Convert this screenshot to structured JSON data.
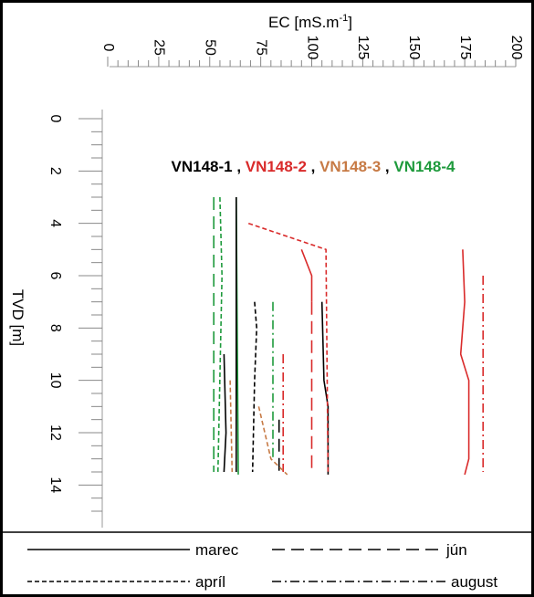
{
  "chart_data": {
    "type": "line",
    "x_axis": {
      "label_main": "EC [mS.m",
      "label_sup": "-1",
      "label_close": "]",
      "min": 0,
      "max": 200,
      "ticks": [
        "0",
        "25",
        "50",
        "75",
        "100",
        "125",
        "150",
        "175",
        "200"
      ]
    },
    "y_axis": {
      "label": "TVD [m]",
      "min": 0,
      "max": 15,
      "ticks": [
        "0",
        "2",
        "4",
        "6",
        "8",
        "10",
        "12",
        "14"
      ],
      "inverted": true
    },
    "wells": [
      {
        "label": "VN148-1",
        "color": "#000000"
      },
      {
        "label": "VN148-2",
        "color": "#d92a2a"
      },
      {
        "label": "VN148-3",
        "color": "#c77a45"
      },
      {
        "label": "VN148-4",
        "color": "#1e9a3c"
      }
    ],
    "series_separator": " , ",
    "series": [
      {
        "well": 3,
        "style": "solid",
        "points": [
          [
            63,
            3
          ],
          [
            64,
            13.5
          ],
          [
            64,
            13.6
          ]
        ]
      },
      {
        "well": 3,
        "style": "longdash",
        "points": [
          [
            52,
            3
          ],
          [
            52,
            13.5
          ]
        ]
      },
      {
        "well": 3,
        "style": "dashed",
        "points": [
          [
            55,
            3
          ],
          [
            56,
            6
          ],
          [
            54,
            13.6
          ]
        ]
      },
      {
        "well": 3,
        "style": "dashdot",
        "points": [
          [
            81,
            7
          ],
          [
            81,
            13
          ]
        ]
      },
      {
        "well": 0,
        "style": "solid",
        "points": [
          [
            63,
            3
          ],
          [
            63,
            13.5
          ]
        ]
      },
      {
        "well": 0,
        "style": "solid",
        "points": [
          [
            57,
            9
          ],
          [
            58,
            12
          ],
          [
            57,
            13.5
          ]
        ]
      },
      {
        "well": 0,
        "style": "dashed",
        "points": [
          [
            72,
            7
          ],
          [
            73,
            8
          ],
          [
            72,
            10
          ],
          [
            71,
            13.5
          ]
        ]
      },
      {
        "well": 0,
        "style": "solid",
        "points": [
          [
            105,
            7
          ],
          [
            106,
            10
          ],
          [
            108,
            11
          ],
          [
            108,
            13.6
          ]
        ]
      },
      {
        "well": 0,
        "style": "longdash",
        "points": [
          [
            84,
            11.5
          ],
          [
            84,
            13.5
          ]
        ]
      },
      {
        "well": 1,
        "style": "solid",
        "points": [
          [
            95,
            5
          ],
          [
            100,
            6
          ],
          [
            100,
            7
          ]
        ]
      },
      {
        "well": 1,
        "style": "dashed",
        "points": [
          [
            69,
            4
          ],
          [
            107,
            5
          ],
          [
            108,
            13.6
          ]
        ]
      },
      {
        "well": 1,
        "style": "longdash",
        "points": [
          [
            100,
            7
          ],
          [
            100,
            13.5
          ]
        ]
      },
      {
        "well": 1,
        "style": "dashdot",
        "points": [
          [
            86,
            9
          ],
          [
            86,
            13.5
          ]
        ]
      },
      {
        "well": 1,
        "style": "solid",
        "points": [
          [
            174,
            5
          ],
          [
            175,
            7
          ],
          [
            173,
            9
          ],
          [
            177,
            10
          ],
          [
            177,
            13
          ],
          [
            175,
            13.6
          ]
        ]
      },
      {
        "well": 1,
        "style": "dashdot",
        "points": [
          [
            184,
            6
          ],
          [
            184,
            13.5
          ]
        ]
      },
      {
        "well": 2,
        "style": "dashed",
        "points": [
          [
            60,
            10
          ],
          [
            61,
            13.5
          ]
        ]
      },
      {
        "well": 2,
        "style": "dashed",
        "points": [
          [
            74,
            11
          ],
          [
            80,
            13
          ],
          [
            88,
            13.6
          ]
        ]
      }
    ],
    "legend": {
      "items": [
        {
          "label": "marec",
          "style": "solid"
        },
        {
          "label": "apríl",
          "style": "dashed"
        },
        {
          "label": "jún",
          "style": "longdash"
        },
        {
          "label": "august",
          "style": "dashdot"
        }
      ]
    }
  }
}
